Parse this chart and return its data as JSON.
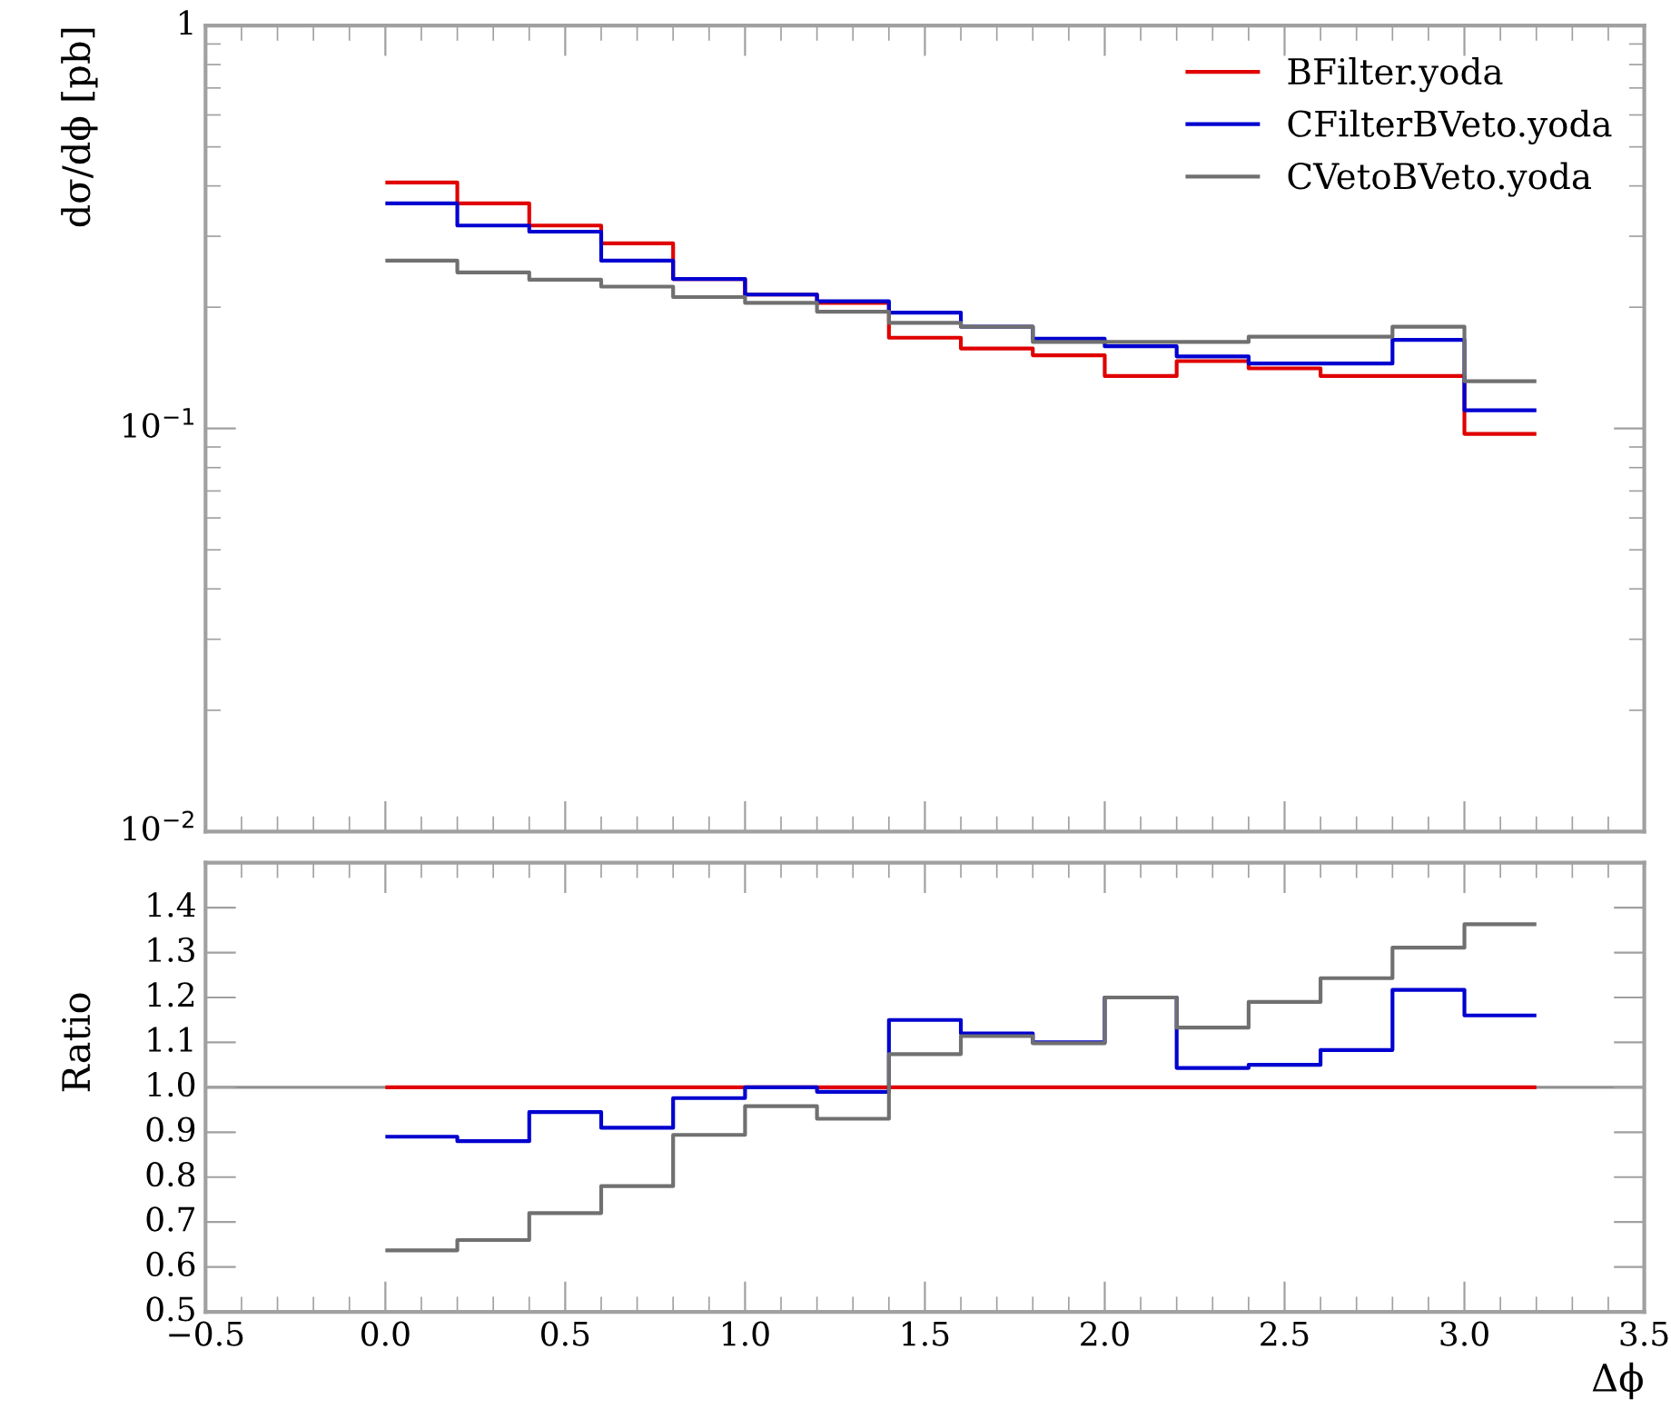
{
  "chart_data": [
    {
      "type": "histogram",
      "ylabel": "dσ/dϕ [pb]",
      "log": "y",
      "bins": [
        0.0,
        0.2,
        0.4,
        0.6,
        0.8,
        1.0,
        1.2,
        1.4,
        1.6,
        1.8,
        2.0,
        2.2,
        2.4,
        2.6,
        2.8,
        3.0,
        3.2
      ],
      "xlim": [
        -0.5,
        3.5
      ],
      "xticks": [
        {
          "value": -0.5,
          "label": null
        },
        {
          "value": 0.0,
          "label": null
        },
        {
          "value": 0.5,
          "label": null
        },
        {
          "value": 1.0,
          "label": null
        },
        {
          "value": 1.5,
          "label": null
        },
        {
          "value": 2.0,
          "label": null
        },
        {
          "value": 2.5,
          "label": null
        },
        {
          "value": 3.0,
          "label": null
        },
        {
          "value": 3.5,
          "label": null
        }
      ],
      "ylim": [
        0.01,
        1
      ],
      "yticks": [
        {
          "value": 0.01,
          "label": "10$^{−2}$"
        },
        {
          "value": 0.1,
          "label": "10$^{−1}$"
        },
        1
      ],
      "tick_labels": "y",
      "legend": "top right",
      "grid": false,
      "series": [
        {
          "name": "BFilter.yoda",
          "color": "#e00000",
          "values": [
            0.408,
            0.362,
            0.319,
            0.288,
            0.235,
            0.215,
            0.205,
            0.168,
            0.158,
            0.152,
            0.135,
            0.147,
            0.141,
            0.135,
            0.135,
            0.097
          ]
        },
        {
          "name": "CFilterBVeto.yoda",
          "color": "#0000d0",
          "values": [
            0.362,
            0.319,
            0.308,
            0.261,
            0.235,
            0.215,
            0.207,
            0.194,
            0.179,
            0.167,
            0.16,
            0.151,
            0.145,
            0.145,
            0.166,
            0.111
          ]
        },
        {
          "name": "CVetoBVeto.yoda",
          "color": "#707070",
          "values": [
            0.261,
            0.244,
            0.234,
            0.225,
            0.212,
            0.205,
            0.195,
            0.183,
            0.179,
            0.164,
            0.164,
            0.164,
            0.169,
            0.169,
            0.179,
            0.131
          ]
        }
      ]
    },
    {
      "type": "histogram",
      "ylabel": "Ratio",
      "xlabel": "Δϕ",
      "bins": [
        0.0,
        0.2,
        0.4,
        0.6,
        0.8,
        1.0,
        1.2,
        1.4,
        1.6,
        1.8,
        2.0,
        2.2,
        2.4,
        2.6,
        2.8,
        3.0,
        3.2
      ],
      "xlim": [
        -0.5,
        3.5
      ],
      "xticks": [
        {
          "value": -0.5,
          "label": "−0.5"
        },
        {
          "value": 0.0,
          "label": "0.0"
        },
        {
          "value": 0.5,
          "label": "0.5"
        },
        {
          "value": 1.0,
          "label": "1.0"
        },
        {
          "value": 1.5,
          "label": "1.5"
        },
        {
          "value": 2.0,
          "label": "2.0"
        },
        {
          "value": 2.5,
          "label": "2.5"
        },
        {
          "value": 3.0,
          "label": "3.0"
        },
        {
          "value": 3.5,
          "label": "3.5"
        }
      ],
      "ylim": [
        0.5,
        1.5
      ],
      "yticks": [
        {
          "value": 0.5,
          "label": "0.5"
        },
        {
          "value": 0.6,
          "label": "0.6"
        },
        {
          "value": 0.7,
          "label": "0.7"
        },
        {
          "value": 0.8,
          "label": "0.8"
        },
        {
          "value": 0.9,
          "label": "0.9"
        },
        {
          "value": 1.0,
          "label": "1.0"
        },
        {
          "value": 1.1,
          "label": "1.1"
        },
        {
          "value": 1.2,
          "label": "1.2"
        },
        {
          "value": 1.3,
          "label": "1.3"
        },
        {
          "value": 1.4,
          "label": "1.4"
        }
      ],
      "grid": false,
      "ref_lines": [
        {
          "axis": "y",
          "value": 1.0,
          "color": "#909090"
        }
      ],
      "series": [
        {
          "color": "#e00000",
          "values": [
            1.0,
            1.0,
            1.0,
            1.0,
            1.0,
            1.0,
            1.0,
            1.0,
            1.0,
            1.0,
            1.0,
            1.0,
            1.0,
            1.0,
            1.0,
            1.0
          ]
        },
        {
          "color": "#0000d0",
          "values": [
            0.89,
            0.88,
            0.945,
            0.91,
            0.976,
            1.0,
            0.99,
            1.15,
            1.12,
            1.1,
            1.2,
            1.043,
            1.05,
            1.083,
            1.217,
            1.16
          ]
        },
        {
          "color": "#707070",
          "values": [
            0.637,
            0.66,
            0.72,
            0.78,
            0.894,
            0.958,
            0.93,
            1.074,
            1.114,
            1.098,
            1.2,
            1.133,
            1.19,
            1.243,
            1.311,
            1.363
          ]
        }
      ]
    }
  ]
}
